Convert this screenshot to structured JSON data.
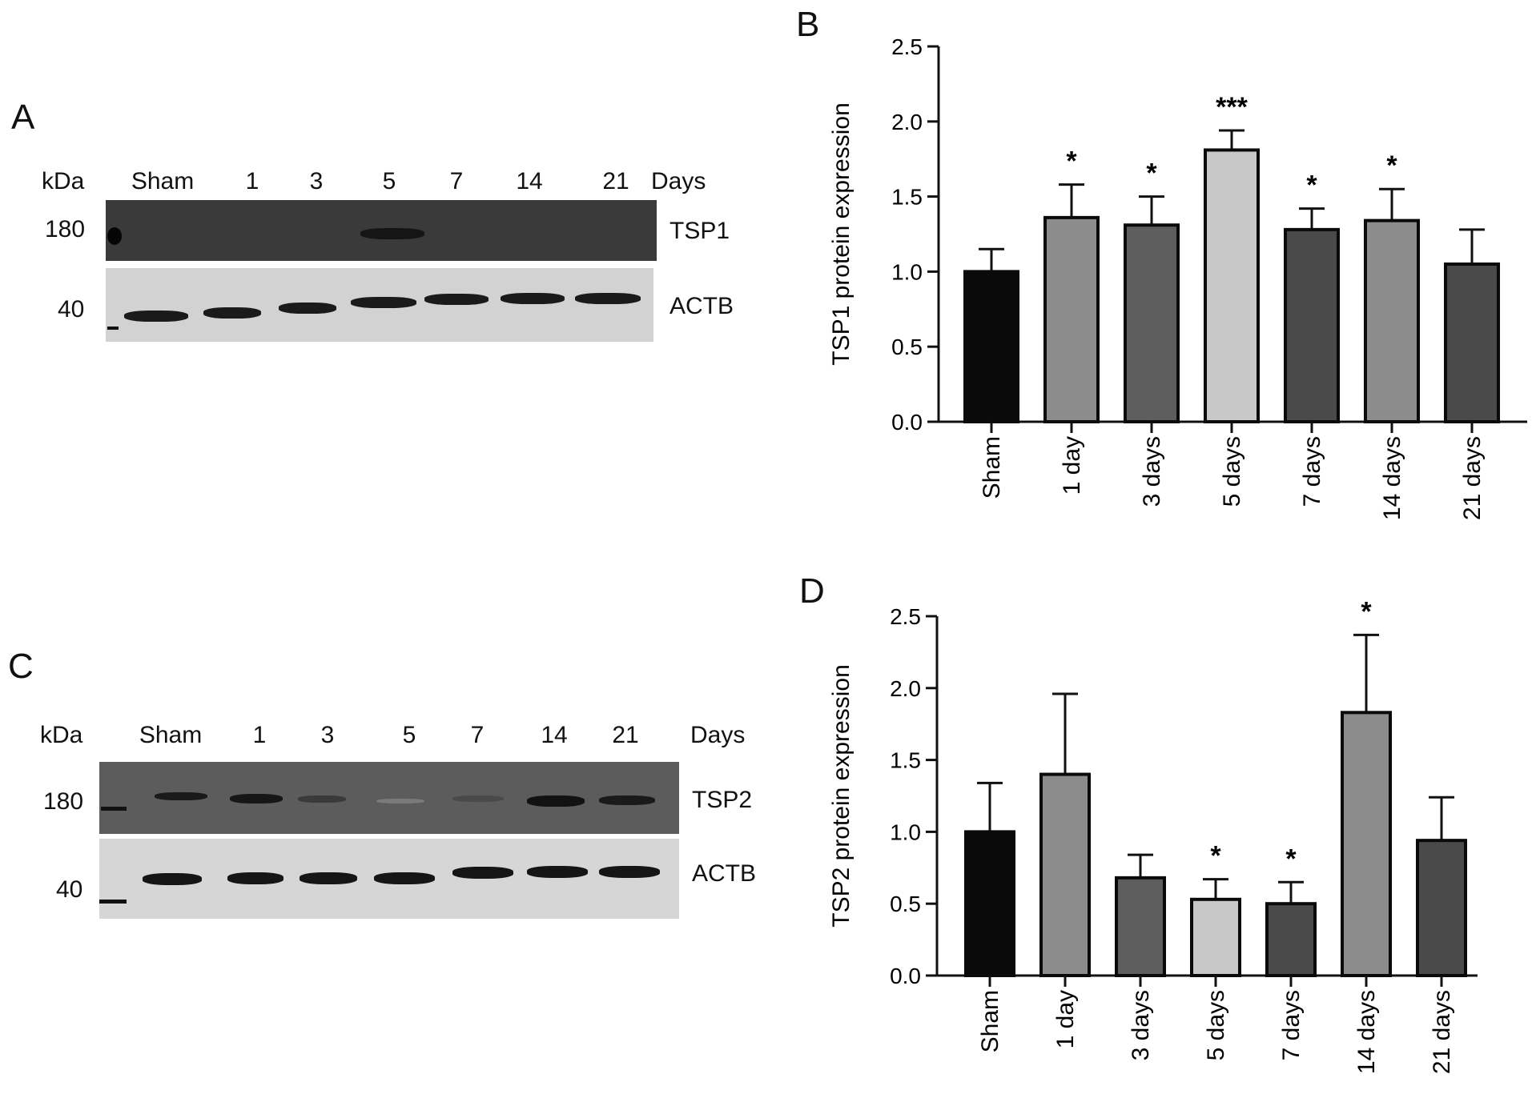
{
  "panels": {
    "A": {
      "letter": "A",
      "kda_label": "kDa",
      "days_label": "Days",
      "lanes": [
        "Sham",
        "1",
        "3",
        "5",
        "7",
        "14",
        "21"
      ],
      "top_blot": {
        "marker": "180",
        "protein": "TSP1"
      },
      "bottom_blot": {
        "marker": "40",
        "protein": "ACTB"
      }
    },
    "C": {
      "letter": "C",
      "kda_label": "kDa",
      "days_label": "Days",
      "lanes": [
        "Sham",
        "1",
        "3",
        "5",
        "7",
        "14",
        "21"
      ],
      "top_blot": {
        "marker": "180",
        "protein": "TSP2"
      },
      "bottom_blot": {
        "marker": "40",
        "protein": "ACTB"
      }
    },
    "B": {
      "letter": "B"
    },
    "D": {
      "letter": "D"
    }
  },
  "chart_data": [
    {
      "panel": "B",
      "type": "bar",
      "ylabel": "TSP1 protein expression",
      "xlabel": "",
      "ylim": [
        0,
        2.5
      ],
      "yticks": [
        "0.0",
        "0.5",
        "1.0",
        "1.5",
        "2.0",
        "2.5"
      ],
      "categories": [
        "Sham",
        "1 day",
        "3 days",
        "5 days",
        "7 days",
        "14 days",
        "21 days"
      ],
      "values": [
        1.0,
        1.36,
        1.31,
        1.81,
        1.28,
        1.34,
        1.05
      ],
      "errors": [
        0.15,
        0.22,
        0.19,
        0.13,
        0.14,
        0.21,
        0.23
      ],
      "significance": [
        "",
        "*",
        "*",
        "***",
        "*",
        "*",
        ""
      ],
      "bar_colors": [
        "#0a0a0a",
        "#8c8c8c",
        "#5e5e5e",
        "#c8c8c8",
        "#4a4a4a",
        "#8c8c8c",
        "#4a4a4a"
      ]
    },
    {
      "panel": "D",
      "type": "bar",
      "ylabel": "TSP2 protein expression",
      "xlabel": "",
      "ylim": [
        0,
        2.5
      ],
      "yticks": [
        "0.0",
        "0.5",
        "1.0",
        "1.5",
        "2.0",
        "2.5"
      ],
      "categories": [
        "Sham",
        "1 day",
        "3 days",
        "5 days",
        "7 days",
        "14 days",
        "21 days"
      ],
      "values": [
        1.0,
        1.4,
        0.68,
        0.53,
        0.5,
        1.83,
        0.94
      ],
      "errors": [
        0.34,
        0.56,
        0.16,
        0.14,
        0.15,
        0.54,
        0.3
      ],
      "significance": [
        "",
        "",
        "",
        "*",
        "*",
        "*",
        ""
      ],
      "bar_colors": [
        "#0a0a0a",
        "#8c8c8c",
        "#5e5e5e",
        "#c8c8c8",
        "#4a4a4a",
        "#8c8c8c",
        "#4a4a4a"
      ]
    }
  ]
}
